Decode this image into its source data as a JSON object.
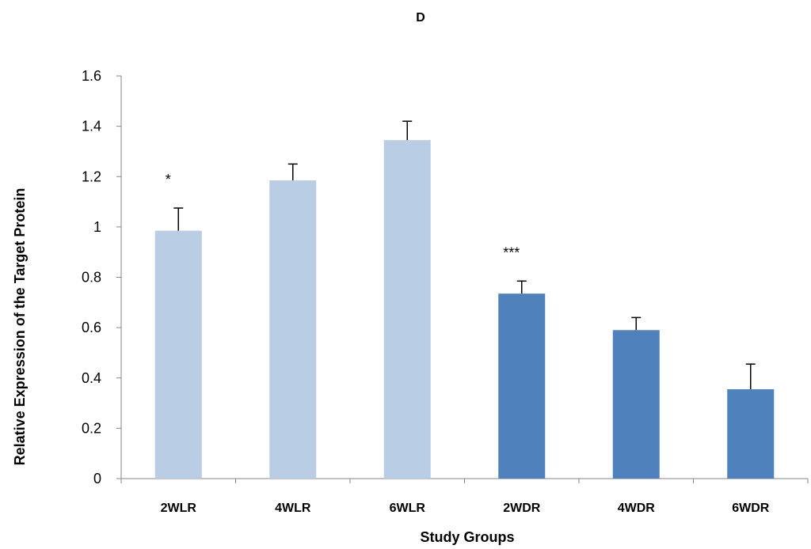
{
  "chart_data": {
    "type": "bar",
    "title": "D",
    "xlabel": "Study Groups",
    "ylabel": "Relative Expression of the Target Protein",
    "categories": [
      "2WLR",
      "4WLR",
      "6WLR",
      "2WDR",
      "4WDR",
      "6WDR"
    ],
    "values": [
      0.985,
      1.185,
      1.345,
      0.735,
      0.59,
      0.355
    ],
    "error_plus": [
      0.09,
      0.065,
      0.075,
      0.05,
      0.05,
      0.1
    ],
    "bar_colors": [
      "#b9cde5",
      "#b9cde5",
      "#b9cde5",
      "#4f81bd",
      "#4f81bd",
      "#4f81bd"
    ],
    "annotations": [
      "*",
      "",
      "",
      "***",
      "",
      ""
    ],
    "ylim": [
      0,
      1.6
    ],
    "yticks": [
      0,
      0.2,
      0.4,
      0.6,
      0.8,
      1,
      1.2,
      1.4,
      1.6
    ],
    "ytick_labels": [
      "0",
      "0.2",
      "0.4",
      "0.6",
      "0.8",
      "1",
      "1.2",
      "1.4",
      "1.6"
    ],
    "grid": false,
    "legend": "none"
  }
}
